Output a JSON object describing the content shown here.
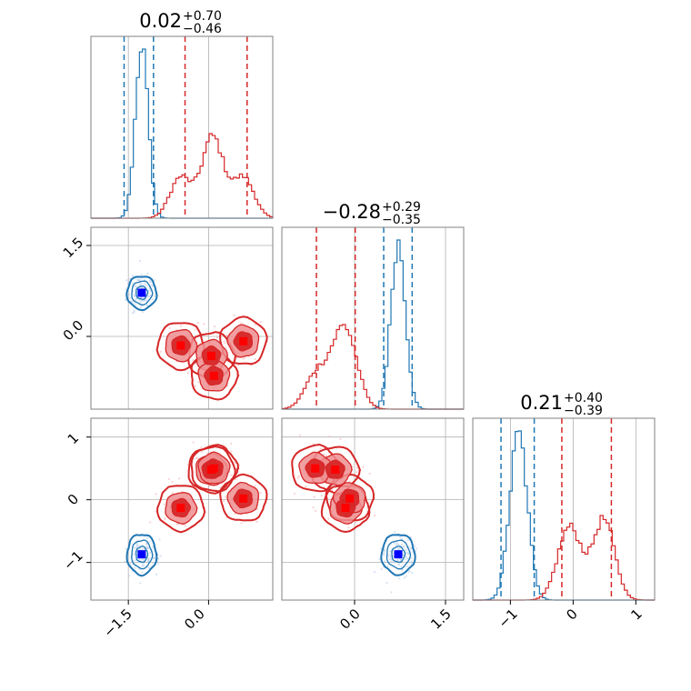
{
  "chart_data": {
    "type": "corner",
    "parameters": [
      "p0",
      "p1",
      "p2"
    ],
    "series": [
      {
        "color": "#1f77b4",
        "modes": [
          [
            -1.25,
            0.72,
            -0.87
          ]
        ],
        "sigma": [
          0.12,
          0.12,
          0.14
        ],
        "quantiles": [
          [
            -1.58,
            -1.03
          ],
          [
            0.48,
            0.95
          ],
          [
            -1.15,
            -0.62
          ]
        ]
      },
      {
        "color": "#d62728",
        "modes": [
          [
            -0.52,
            -0.15,
            -0.13
          ],
          [
            0.05,
            -0.32,
            0.48
          ],
          [
            0.1,
            -0.65,
            0.5
          ],
          [
            0.65,
            -0.08,
            0.02
          ]
        ],
        "sigma": [
          0.2,
          0.18,
          0.17
        ],
        "quantiles": [
          [
            -0.44,
            0.72
          ],
          [
            -0.63,
            0.01
          ],
          [
            -0.18,
            0.61
          ]
        ]
      }
    ],
    "axes": {
      "p0": {
        "range": [
          -2.2,
          1.2
        ],
        "ticks": [
          -1.5,
          0.0
        ],
        "tick_labels": [
          "−1.5",
          "0.0"
        ]
      },
      "p1": {
        "range": [
          -1.2,
          1.8
        ],
        "ticks": [
          0.0,
          1.5
        ],
        "tick_labels": [
          "0.0",
          "1.5"
        ]
      },
      "p2": {
        "range": [
          -1.6,
          1.3
        ],
        "ticks": [
          -1,
          0,
          1
        ],
        "tick_labels": [
          "−1",
          "0",
          "1"
        ]
      }
    },
    "titles": [
      {
        "value": "0.02",
        "plus": "+0.70",
        "minus": "−0.46"
      },
      {
        "value": "−0.28",
        "plus": "+0.29",
        "minus": "−0.35"
      },
      {
        "value": "0.21",
        "plus": "+0.40",
        "minus": "−0.39"
      }
    ],
    "grid": true
  }
}
